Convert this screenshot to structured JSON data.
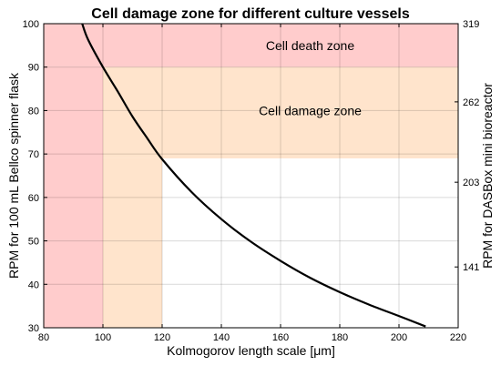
{
  "chart_data": {
    "type": "line",
    "title": "Cell damage zone for different culture vessels",
    "xlabel": "Kolmogorov length scale [μm]",
    "ylabel": "RPM for 100 mL Bellco spinner flask",
    "ylabel_right": "RPM for DASBox mini bioreactor",
    "xlim": [
      80,
      220
    ],
    "ylim": [
      30,
      100
    ],
    "x_ticks": [
      "80",
      "100",
      "120",
      "140",
      "160",
      "180",
      "200",
      "220"
    ],
    "y_ticks": [
      "30",
      "40",
      "50",
      "60",
      "70",
      "80",
      "90",
      "100"
    ],
    "y_ticks_right": [
      {
        "label": "141",
        "at": 44
      },
      {
        "label": "203",
        "at": 63.5
      },
      {
        "label": "262",
        "at": 82
      },
      {
        "label": "319",
        "at": 100
      }
    ],
    "grid": true,
    "series": [
      {
        "color": "#000000",
        "x": [
          93,
          95,
          100,
          105,
          110,
          115,
          120,
          130,
          140,
          150,
          160,
          170,
          180,
          190,
          200,
          209
        ],
        "y": [
          100,
          96.3,
          90,
          84.4,
          78.6,
          73.6,
          68.8,
          61.2,
          55,
          49.8,
          45.4,
          41.5,
          38.2,
          35.3,
          32.7,
          30.3
        ]
      }
    ],
    "zones": [
      {
        "label": "Cell death zone",
        "color": "#ffcccc",
        "x_range": [
          80,
          220
        ],
        "y_range": [
          90,
          100
        ]
      },
      {
        "label": "",
        "color": "#ffcccc",
        "x_range": [
          80,
          100
        ],
        "y_range": [
          30,
          90
        ]
      },
      {
        "label": "Cell damage zone",
        "color": "#ffe4cc",
        "x_range": [
          100,
          220
        ],
        "y_range": [
          69,
          90
        ]
      },
      {
        "label": "",
        "color": "#ffe4cc",
        "x_range": [
          100,
          120
        ],
        "y_range": [
          30,
          69
        ]
      }
    ],
    "zone_labels": [
      {
        "text": "Cell death zone",
        "x": 170,
        "y": 95
      },
      {
        "text": "Cell damage zone",
        "x": 170,
        "y": 80
      }
    ]
  }
}
